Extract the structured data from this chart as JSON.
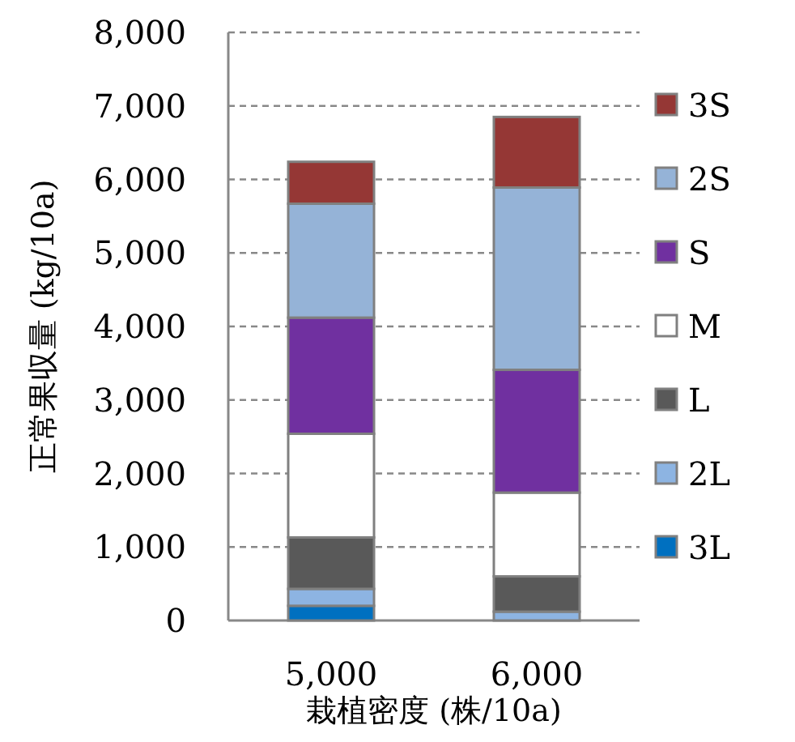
{
  "chart_data": {
    "type": "bar",
    "stacked": true,
    "xlabel": "栽植密度 (株/10a)",
    "ylabel": "正常果収量 (kg/10a)",
    "categories": [
      "5,000",
      "6,000"
    ],
    "series": [
      {
        "name": "3L",
        "color": "#0070c0",
        "values": [
          200,
          0
        ]
      },
      {
        "name": "2L",
        "color": "#8db4e2",
        "values": [
          230,
          120
        ]
      },
      {
        "name": "L",
        "color": "#595959",
        "values": [
          700,
          480
        ]
      },
      {
        "name": "M",
        "color": "#ffffff",
        "values": [
          1410,
          1140
        ]
      },
      {
        "name": "S",
        "color": "#7030a0",
        "values": [
          1580,
          1670
        ]
      },
      {
        "name": "2S",
        "color": "#95b3d7",
        "values": [
          1550,
          2480
        ]
      },
      {
        "name": "3S",
        "color": "#953735",
        "values": [
          570,
          960
        ]
      }
    ],
    "ylim": [
      0,
      8000
    ],
    "yticks": [
      {
        "value": 0,
        "label": "0"
      },
      {
        "value": 1000,
        "label": "1,000"
      },
      {
        "value": 2000,
        "label": "2,000"
      },
      {
        "value": 3000,
        "label": "3,000"
      },
      {
        "value": 4000,
        "label": "4,000"
      },
      {
        "value": 5000,
        "label": "5,000"
      },
      {
        "value": 6000,
        "label": "6,000"
      },
      {
        "value": 7000,
        "label": "7,000"
      },
      {
        "value": 8000,
        "label": "8,000"
      }
    ],
    "grid": "y",
    "legend": "right"
  }
}
